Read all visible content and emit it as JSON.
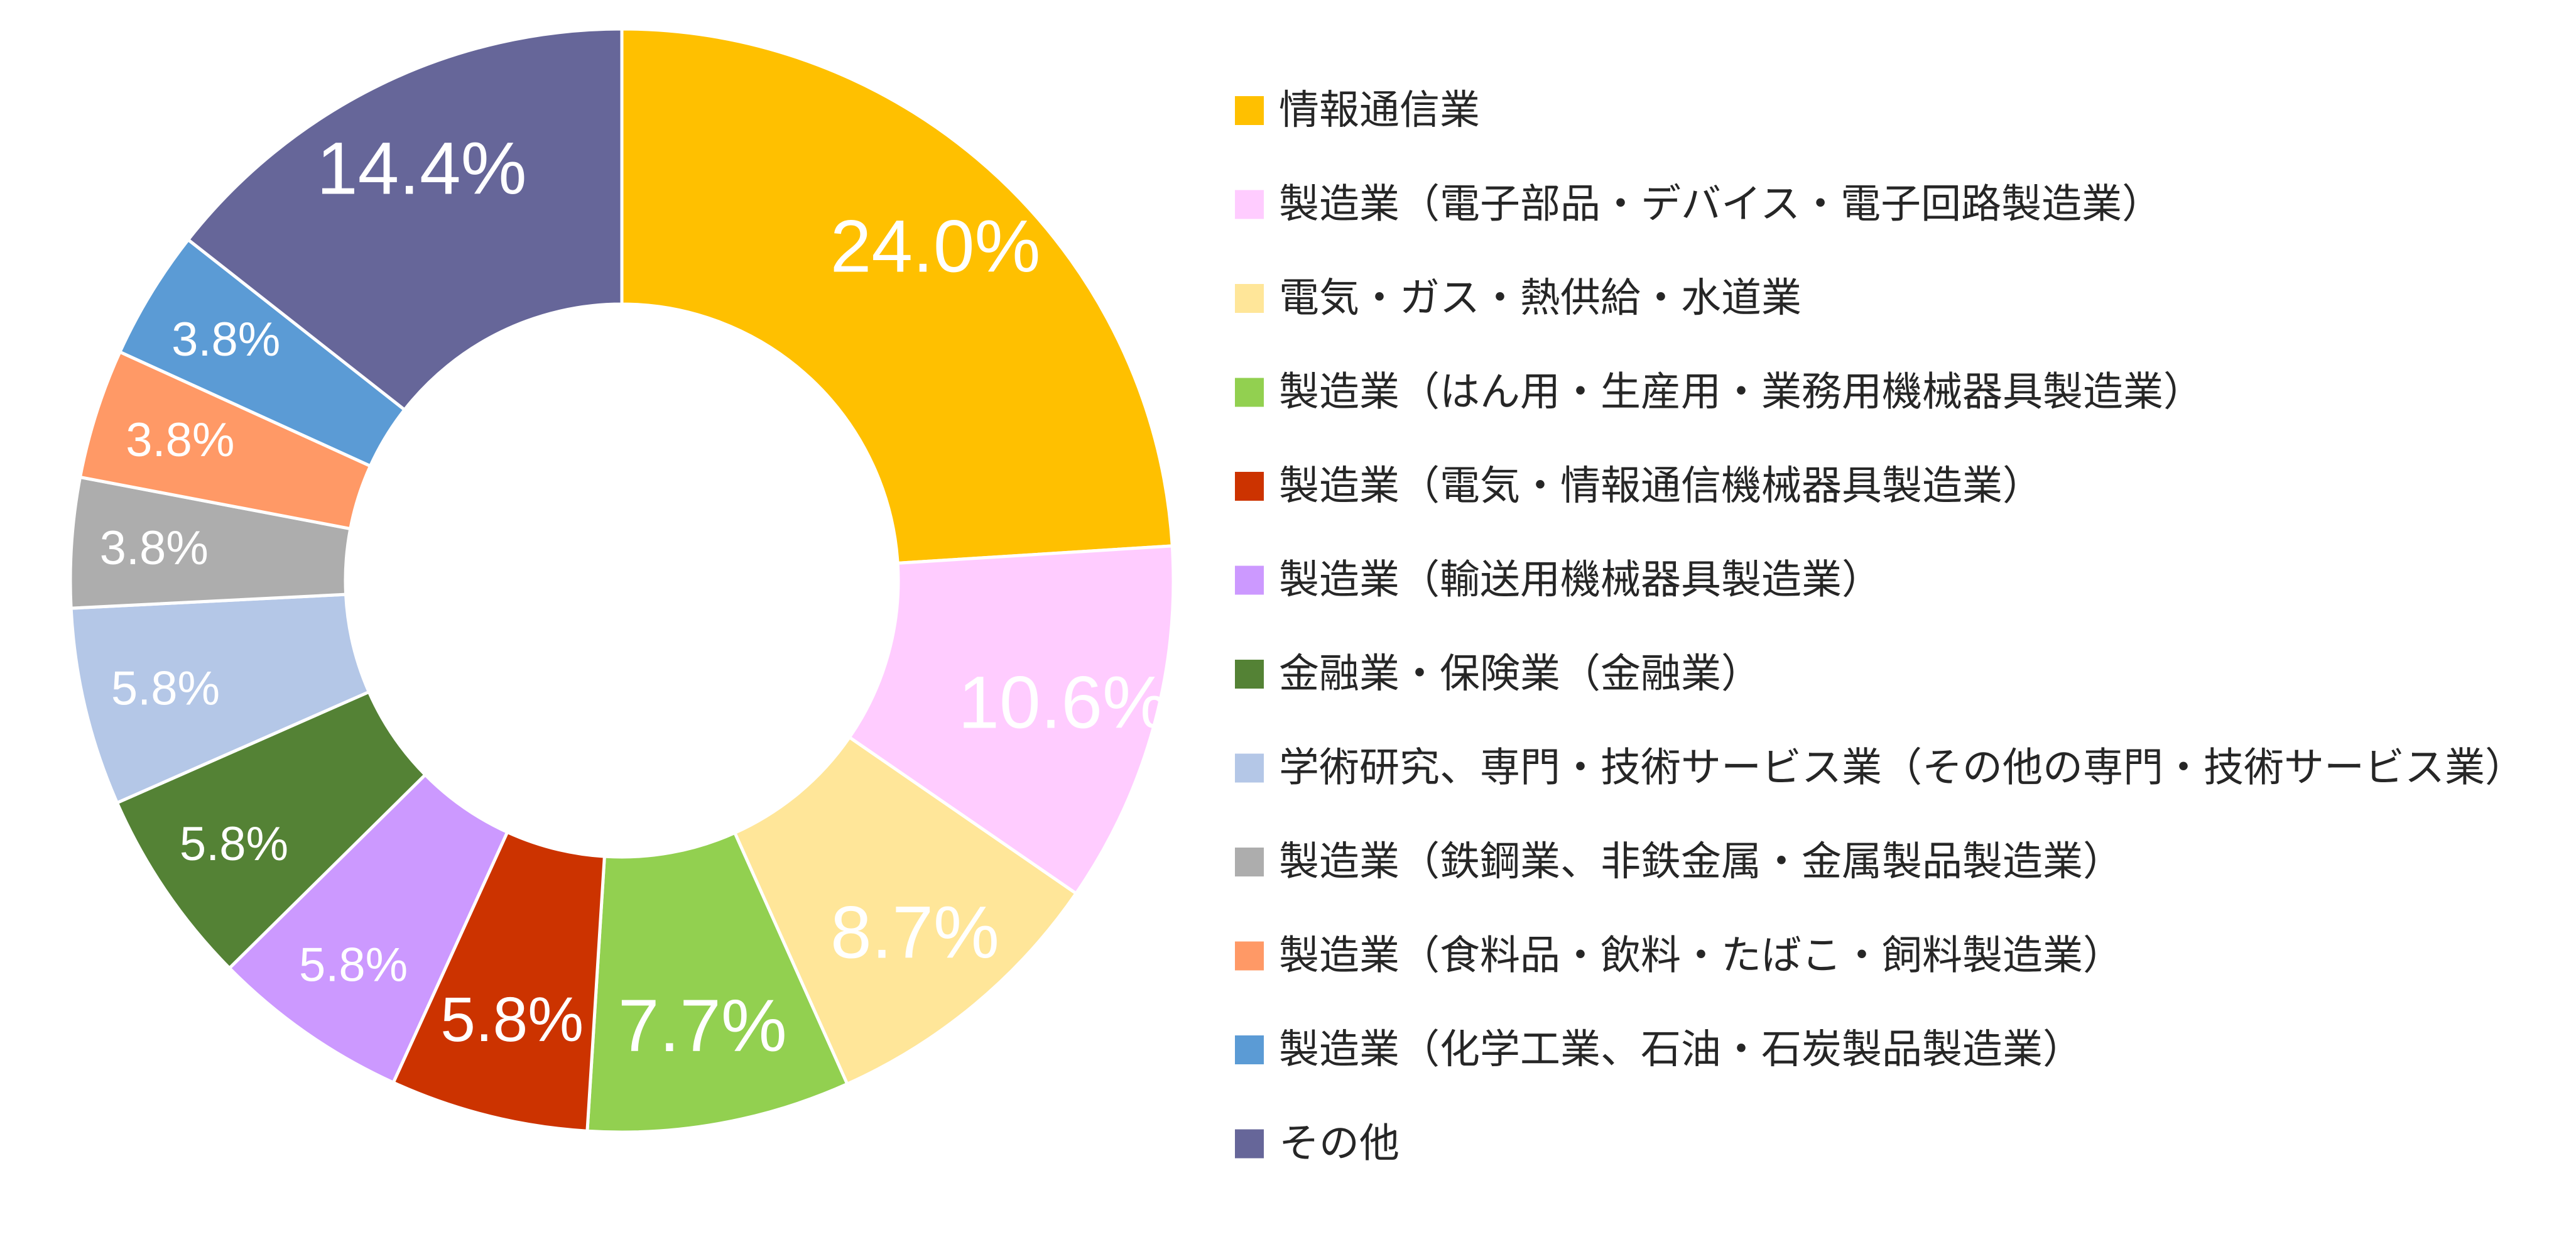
{
  "chart_data": {
    "type": "pie",
    "donut": true,
    "legend_position": "right",
    "categories": [
      "情報通信業",
      "製造業（電子部品・デバイス・電子回路製造業）",
      "電気・ガス・熱供給・水道業",
      "製造業（はん用・生産用・業務用機械器具製造業）",
      "製造業（電気・情報通信機械器具製造業）",
      "製造業（輸送用機械器具製造業）",
      "金融業・保険業（金融業）",
      "学術研究、専門・技術サービス業（その他の専門・技術サービス業）",
      "製造業（鉄鋼業、非鉄金属・金属製品製造業）",
      "製造業（食料品・飲料・たばこ・飼料製造業）",
      "製造業（化学工業、石油・石炭製品製造業）",
      "その他"
    ],
    "values": [
      24.0,
      10.6,
      8.7,
      7.7,
      5.8,
      5.8,
      5.8,
      5.8,
      3.8,
      3.8,
      3.8,
      14.4
    ],
    "data_labels": [
      "24.0%",
      "10.6%",
      "8.7%",
      "7.7%",
      "5.8%",
      "5.8%",
      "5.8%",
      "5.8%",
      "3.8%",
      "3.8%",
      "3.8%",
      "14.4%"
    ],
    "colors": [
      "#FFC000",
      "#FFCCFF",
      "#FFE699",
      "#92D050",
      "#CC3300",
      "#CC99FF",
      "#548235",
      "#B4C7E7",
      "#ADADAD",
      "#FF9966",
      "#5B9BD5",
      "#666699"
    ]
  }
}
